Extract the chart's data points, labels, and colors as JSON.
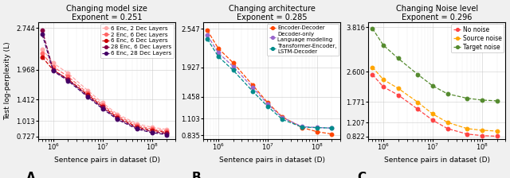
{
  "panel_A": {
    "title": "Changing model size\nExponent = 0.251",
    "xlabel": "Sentence pairs in dataset (D)",
    "ylabel": "Test log-perplexity (L)",
    "xlim": [
      500000.0,
      300000000.0
    ],
    "ylim": [
      0.68,
      2.85
    ],
    "yticks": [
      0.727,
      1.013,
      1.412,
      1.968,
      2.744
    ],
    "ytick_labels": [
      "0.727",
      "1.013",
      "1.412",
      "1.968",
      "2.744"
    ],
    "label_letter": "A",
    "series": [
      {
        "label": "6 Enc, 2 Dec Layers",
        "color": "#FFAAAA",
        "x": [
          600000.0,
          1000000.0,
          2000000.0,
          5000000.0,
          10000000.0,
          20000000.0,
          50000000.0,
          100000000.0,
          200000000.0
        ],
        "y": [
          2.35,
          2.09,
          1.9,
          1.58,
          1.35,
          1.14,
          0.96,
          0.895,
          0.855
        ]
      },
      {
        "label": "2 Enc, 6 Dec Layers",
        "color": "#FF6666",
        "x": [
          600000.0,
          1000000.0,
          2000000.0,
          5000000.0,
          10000000.0,
          20000000.0,
          50000000.0,
          100000000.0,
          200000000.0
        ],
        "y": [
          2.27,
          2.02,
          1.84,
          1.53,
          1.31,
          1.11,
          0.93,
          0.862,
          0.825
        ]
      },
      {
        "label": "6 Enc, 6 Dec Layers",
        "color": "#CC0000",
        "x": [
          600000.0,
          1000000.0,
          2000000.0,
          5000000.0,
          10000000.0,
          20000000.0,
          50000000.0,
          100000000.0,
          200000000.0
        ],
        "y": [
          2.2,
          1.96,
          1.79,
          1.5,
          1.28,
          1.08,
          0.9,
          0.838,
          0.8
        ]
      },
      {
        "label": "28 Enc, 6 Dec Layers",
        "color": "#880044",
        "x": [
          600000.0,
          1000000.0,
          2000000.0,
          5000000.0,
          10000000.0,
          20000000.0,
          50000000.0,
          100000000.0,
          200000000.0
        ],
        "y": [
          2.7,
          1.96,
          1.78,
          1.48,
          1.26,
          1.06,
          0.88,
          0.815,
          0.778
        ]
      },
      {
        "label": "6 Enc, 28 Dec Layers",
        "color": "#440066",
        "x": [
          600000.0,
          1000000.0,
          2000000.0,
          5000000.0,
          10000000.0,
          20000000.0,
          50000000.0,
          100000000.0,
          200000000.0
        ],
        "y": [
          2.62,
          1.94,
          1.76,
          1.46,
          1.24,
          1.04,
          0.862,
          0.795,
          0.757
        ]
      }
    ]
  },
  "panel_B": {
    "title": "Changing architecture\nExponent = 0.285",
    "xlabel": "Sentence pairs in dataset (D)",
    "ylabel": "Test log-perplexity (L)",
    "xlim": [
      500000.0,
      300000000.0
    ],
    "ylim": [
      0.78,
      2.65
    ],
    "yticks": [
      0.835,
      1.103,
      1.458,
      1.927,
      2.547
    ],
    "ytick_labels": [
      "0.835",
      "1.103",
      "1.458",
      "1.927",
      "2.547"
    ],
    "label_letter": "B",
    "series": [
      {
        "label": "Encoder-Decoder",
        "color": "#FF4500",
        "x": [
          600000.0,
          1000000.0,
          2000000.0,
          5000000.0,
          10000000.0,
          20000000.0,
          50000000.0,
          100000000.0,
          200000000.0
        ],
        "y": [
          2.52,
          2.23,
          2.0,
          1.64,
          1.36,
          1.13,
          0.96,
          0.895,
          0.857
        ]
      },
      {
        "label": "Decoder-only\nLanguage modeling",
        "color": "#9966CC",
        "x": [
          600000.0,
          1000000.0,
          2000000.0,
          5000000.0,
          10000000.0,
          20000000.0,
          50000000.0,
          100000000.0,
          200000000.0
        ],
        "y": [
          2.44,
          2.16,
          1.94,
          1.6,
          1.34,
          1.12,
          0.975,
          0.962,
          0.952
        ]
      },
      {
        "label": "Transformer-Encoder,\nLSTM-Decoder",
        "color": "#008B8B",
        "x": [
          600000.0,
          1000000.0,
          2000000.0,
          5000000.0,
          10000000.0,
          20000000.0,
          50000000.0,
          100000000.0,
          200000000.0
        ],
        "y": [
          2.38,
          2.1,
          1.88,
          1.54,
          1.3,
          1.09,
          0.968,
          0.96,
          0.953
        ]
      }
    ]
  },
  "panel_C": {
    "title": "Changing Noise level\nExponent = 0.296",
    "xlabel": "Sentence pairs in dataset (D)",
    "ylabel": "Test log-perplexity (L)",
    "xlim": [
      500000.0,
      300000000.0
    ],
    "ylim": [
      0.76,
      3.95
    ],
    "yticks": [
      0.822,
      1.207,
      1.771,
      2.6,
      3.816
    ],
    "ytick_labels": [
      "0.822",
      "1.207",
      "1.771",
      "2.600",
      "3.816"
    ],
    "label_letter": "C",
    "series": [
      {
        "label": "No noise",
        "color": "#FF4444",
        "x": [
          600000.0,
          1000000.0,
          2000000.0,
          5000000.0,
          10000000.0,
          20000000.0,
          50000000.0,
          100000000.0,
          200000000.0
        ],
        "y": [
          2.52,
          2.18,
          1.96,
          1.57,
          1.27,
          1.04,
          0.89,
          0.848,
          0.832
        ]
      },
      {
        "label": "Source noise",
        "color": "#FFA500",
        "x": [
          600000.0,
          1000000.0,
          2000000.0,
          5000000.0,
          10000000.0,
          20000000.0,
          50000000.0,
          100000000.0,
          200000000.0
        ],
        "y": [
          2.72,
          2.38,
          2.14,
          1.76,
          1.44,
          1.21,
          1.04,
          0.995,
          0.972
        ]
      },
      {
        "label": "Target noise",
        "color": "#558B2F",
        "x": [
          600000.0,
          1000000.0,
          2000000.0,
          5000000.0,
          10000000.0,
          20000000.0,
          50000000.0,
          100000000.0,
          200000000.0
        ],
        "y": [
          3.78,
          3.32,
          2.96,
          2.52,
          2.21,
          1.99,
          1.87,
          1.82,
          1.8
        ]
      }
    ]
  },
  "fig_bgcolor": "#f0f0f0",
  "axes_bgcolor": "white"
}
